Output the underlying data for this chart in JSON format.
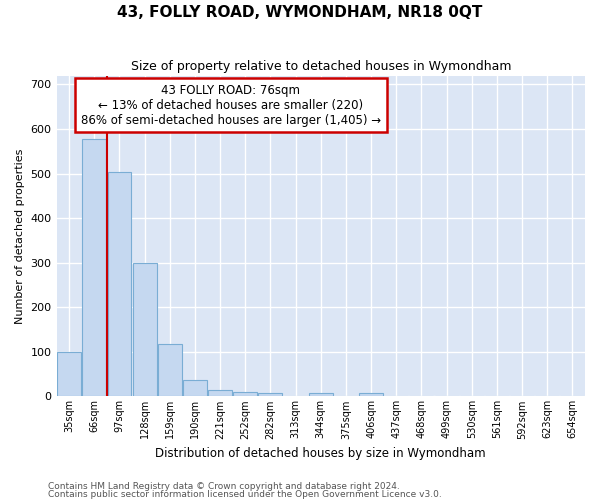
{
  "title": "43, FOLLY ROAD, WYMONDHAM, NR18 0QT",
  "subtitle": "Size of property relative to detached houses in Wymondham",
  "xlabel": "Distribution of detached houses by size in Wymondham",
  "ylabel": "Number of detached properties",
  "footnote1": "Contains HM Land Registry data © Crown copyright and database right 2024.",
  "footnote2": "Contains public sector information licensed under the Open Government Licence v3.0.",
  "bar_color": "#c5d8f0",
  "bar_edge_color": "#7aadd4",
  "vline_color": "#cc0000",
  "axes_bg_color": "#dce6f5",
  "fig_bg_color": "#ffffff",
  "grid_color": "#ffffff",
  "categories": [
    "35sqm",
    "66sqm",
    "97sqm",
    "128sqm",
    "159sqm",
    "190sqm",
    "221sqm",
    "252sqm",
    "282sqm",
    "313sqm",
    "344sqm",
    "375sqm",
    "406sqm",
    "437sqm",
    "468sqm",
    "499sqm",
    "530sqm",
    "561sqm",
    "592sqm",
    "623sqm",
    "654sqm"
  ],
  "values": [
    100,
    578,
    503,
    300,
    118,
    37,
    15,
    10,
    8,
    0,
    8,
    0,
    8,
    0,
    0,
    0,
    0,
    0,
    0,
    0,
    0
  ],
  "ylim": [
    0,
    720
  ],
  "yticks": [
    0,
    100,
    200,
    300,
    400,
    500,
    600,
    700
  ],
  "vline_x_idx": 1.5,
  "annotation_line1": "43 FOLLY ROAD: 76sqm",
  "annotation_line2": "← 13% of detached houses are smaller (220)",
  "annotation_line3": "86% of semi-detached houses are larger (1,405) →"
}
